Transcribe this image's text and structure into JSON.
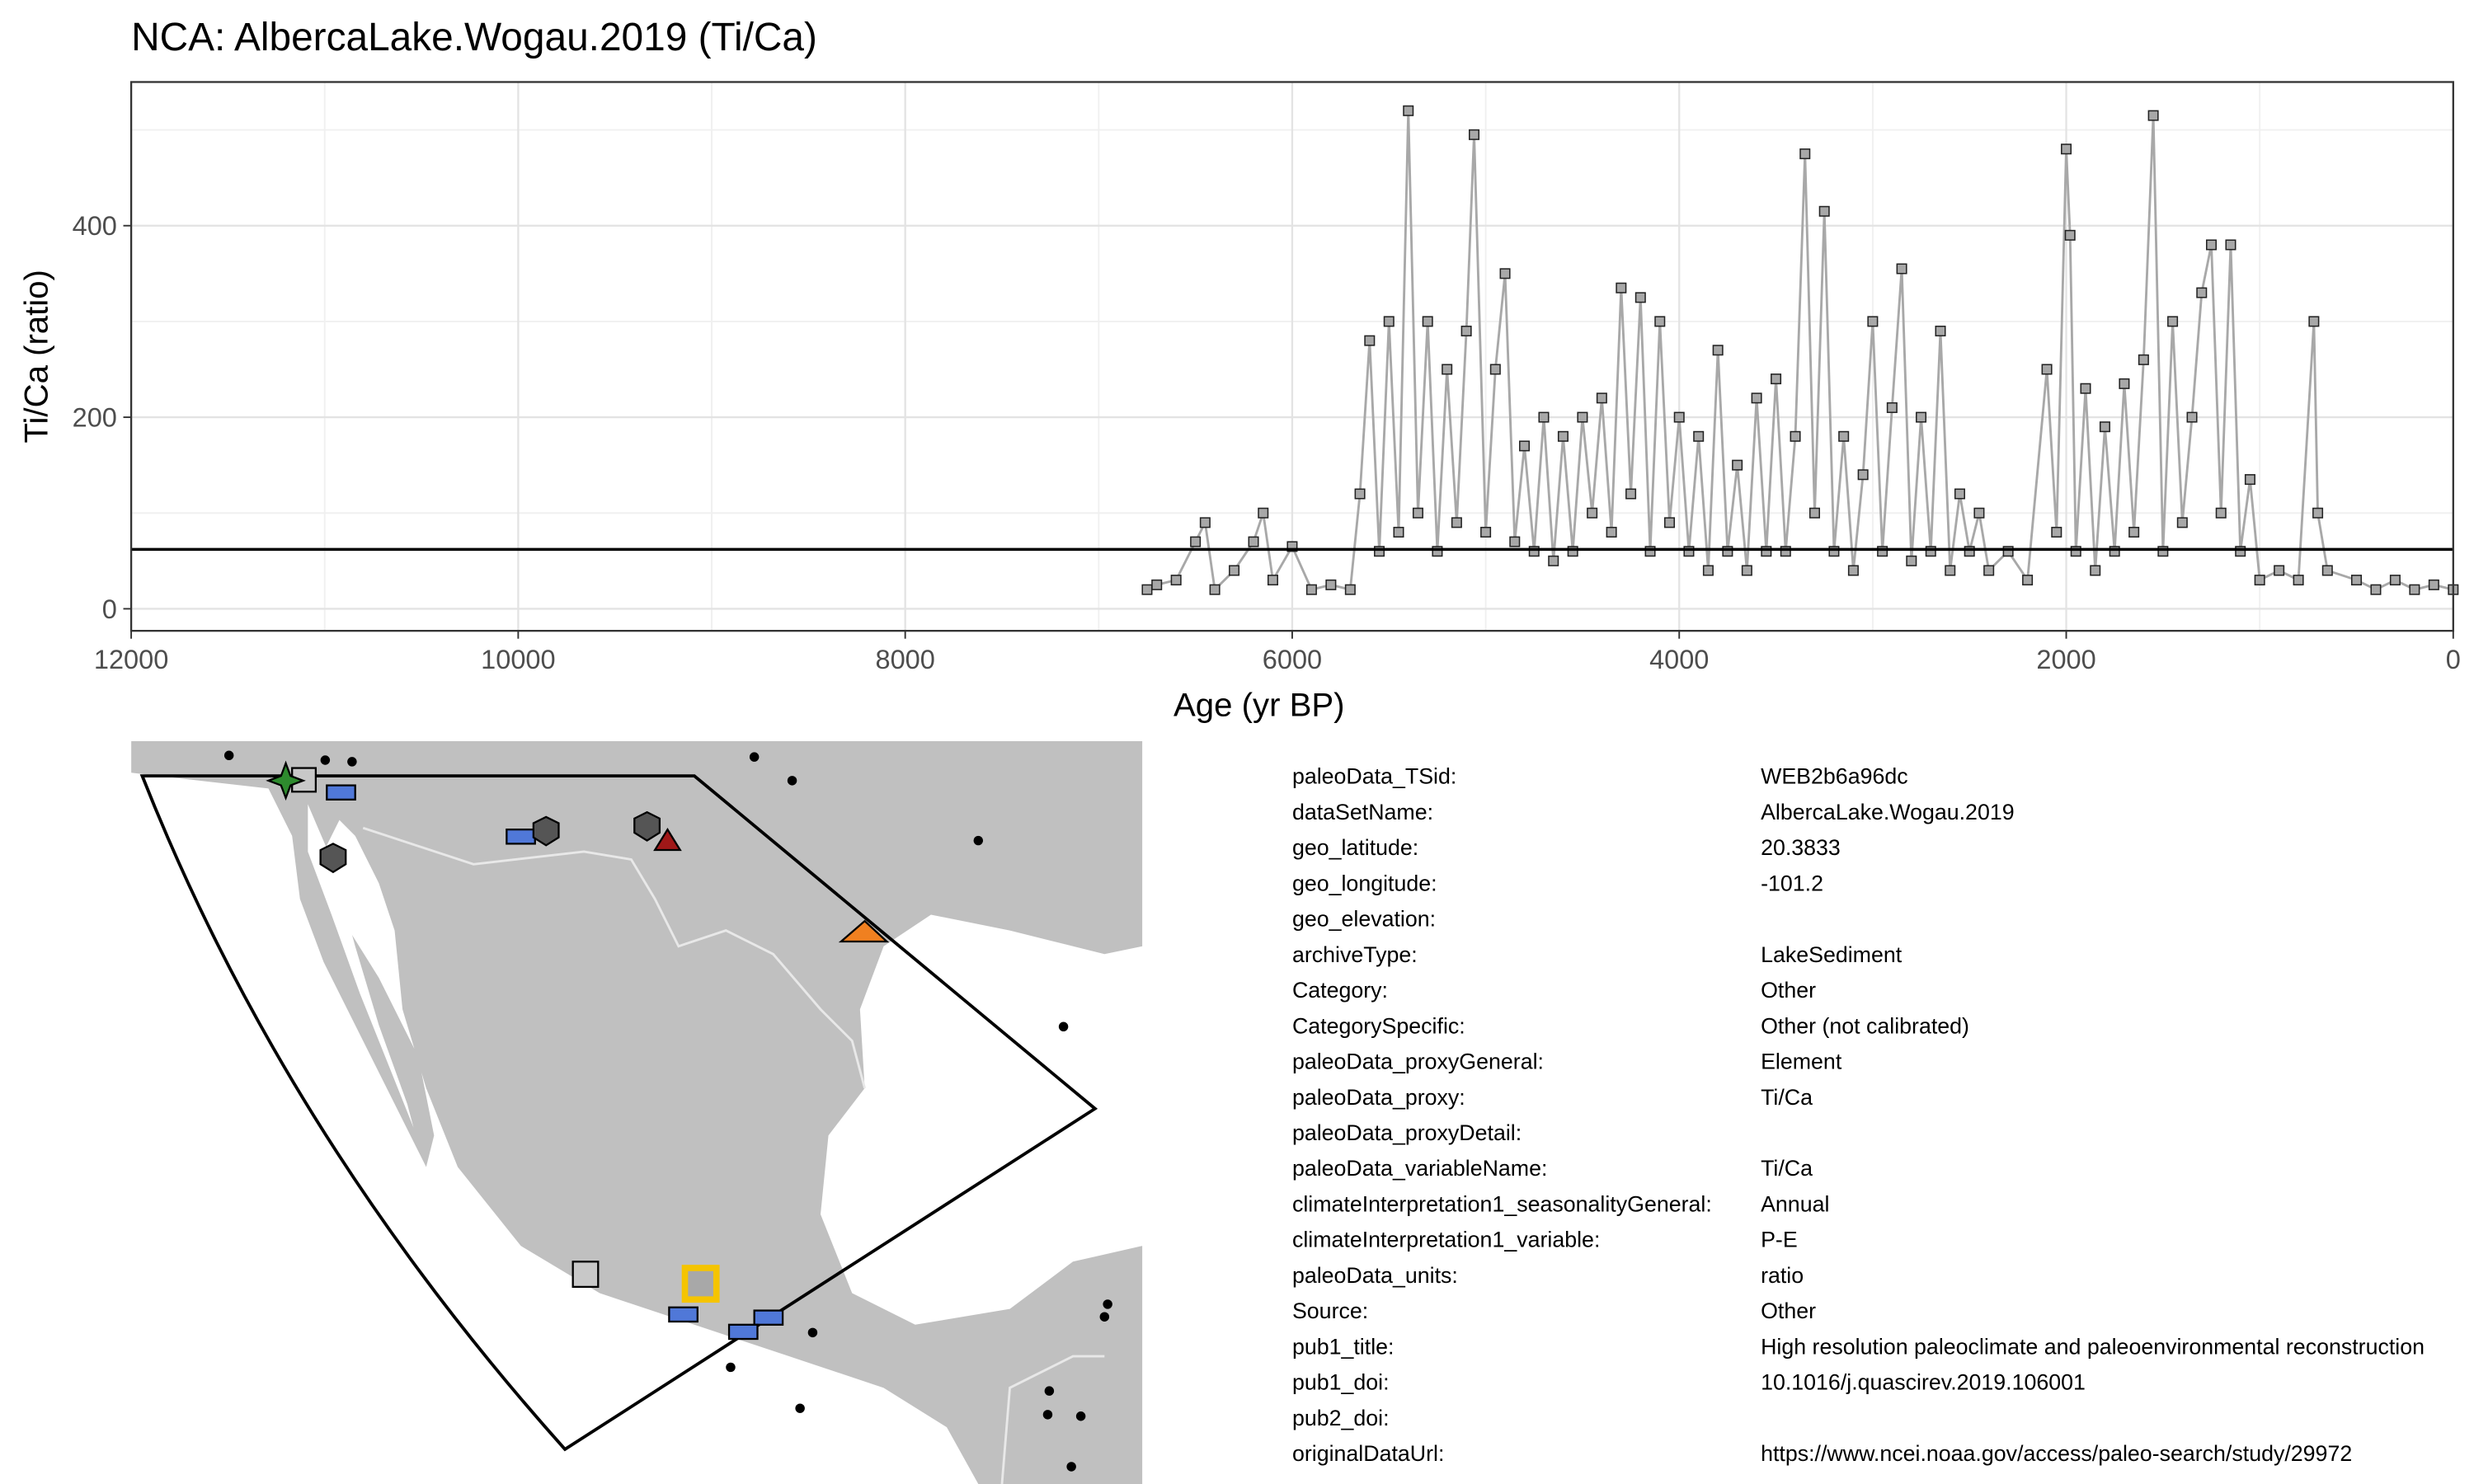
{
  "chart_data": {
    "type": "line",
    "title": "NCA: AlbercaLake.Wogau.2019 (Ti/Ca)",
    "x_label": "Age (yr BP)",
    "y_label": "Ti/Ca (ratio)",
    "xlim": [
      12000,
      0
    ],
    "xticks": [
      12000,
      10000,
      8000,
      6000,
      4000,
      2000,
      0
    ],
    "ylim": [
      -23,
      550
    ],
    "yticks": [
      0,
      200,
      400
    ],
    "grid": true,
    "reference_line": 62,
    "series": [
      {
        "name": "Ti/Ca",
        "color": "#a8a8a8",
        "x": [
          6750,
          6700,
          6600,
          6500,
          6450,
          6400,
          6300,
          6200,
          6150,
          6100,
          6000,
          5900,
          5800,
          5700,
          5650,
          5600,
          5550,
          5500,
          5450,
          5400,
          5350,
          5300,
          5250,
          5200,
          5150,
          5100,
          5060,
          5000,
          4950,
          4900,
          4850,
          4800,
          4750,
          4700,
          4650,
          4600,
          4550,
          4500,
          4450,
          4400,
          4350,
          4300,
          4250,
          4200,
          4150,
          4100,
          4050,
          4000,
          3950,
          3900,
          3850,
          3800,
          3750,
          3700,
          3650,
          3600,
          3550,
          3500,
          3450,
          3400,
          3350,
          3300,
          3250,
          3200,
          3150,
          3100,
          3050,
          3000,
          2950,
          2900,
          2850,
          2800,
          2750,
          2700,
          2650,
          2600,
          2550,
          2500,
          2450,
          2400,
          2300,
          2200,
          2100,
          2050,
          2000,
          1980,
          1950,
          1900,
          1850,
          1800,
          1750,
          1700,
          1650,
          1600,
          1550,
          1500,
          1450,
          1400,
          1350,
          1300,
          1250,
          1200,
          1150,
          1100,
          1050,
          1000,
          900,
          800,
          720,
          700,
          650,
          500,
          400,
          300,
          200,
          100,
          0
        ],
        "values": [
          20,
          25,
          30,
          70,
          90,
          20,
          40,
          70,
          100,
          30,
          65,
          20,
          25,
          20,
          120,
          280,
          60,
          300,
          80,
          520,
          100,
          300,
          60,
          250,
          90,
          290,
          495,
          80,
          250,
          350,
          70,
          170,
          60,
          200,
          50,
          180,
          60,
          200,
          100,
          220,
          80,
          335,
          120,
          325,
          60,
          300,
          90,
          200,
          60,
          180,
          40,
          270,
          60,
          150,
          40,
          220,
          60,
          240,
          60,
          180,
          475,
          100,
          415,
          60,
          180,
          40,
          140,
          300,
          60,
          210,
          355,
          50,
          200,
          60,
          290,
          40,
          120,
          60,
          100,
          40,
          60,
          30,
          250,
          80,
          480,
          390,
          60,
          230,
          40,
          190,
          60,
          235,
          80,
          260,
          515,
          60,
          300,
          90,
          200,
          330,
          380,
          100,
          380,
          60,
          135,
          30,
          40,
          30,
          300,
          100,
          40,
          30,
          20,
          30,
          20,
          25,
          20
        ]
      }
    ]
  },
  "metadata": [
    [
      "paleoData_TSid:",
      "WEB2b6a96dc"
    ],
    [
      "dataSetName:",
      "AlbercaLake.Wogau.2019"
    ],
    [
      "geo_latitude:",
      "20.3833"
    ],
    [
      "geo_longitude:",
      "-101.2"
    ],
    [
      "geo_elevation:",
      ""
    ],
    [
      "archiveType:",
      "LakeSediment"
    ],
    [
      "Category:",
      "Other"
    ],
    [
      "CategorySpecific:",
      "Other (not calibrated)"
    ],
    [
      "paleoData_proxyGeneral:",
      "Element"
    ],
    [
      "paleoData_proxy:",
      "Ti/Ca"
    ],
    [
      "paleoData_proxyDetail:",
      ""
    ],
    [
      "paleoData_variableName:",
      "Ti/Ca"
    ],
    [
      "climateInterpretation1_seasonalityGeneral:",
      "Annual"
    ],
    [
      "climateInterpretation1_variable:",
      "P-E"
    ],
    [
      "paleoData_units:",
      "ratio"
    ],
    [
      "Source:",
      "Other"
    ],
    [
      "pub1_title:",
      "High resolution paleoclimate and paleoenvironmental reconstruction"
    ],
    [
      "pub1_doi:",
      "10.1016/j.quascirev.2019.106001"
    ],
    [
      "pub2_doi:",
      ""
    ],
    [
      "originalDataUrl:",
      "https://www.ncei.noaa.gov/access/paleo-search/study/29972"
    ]
  ]
}
